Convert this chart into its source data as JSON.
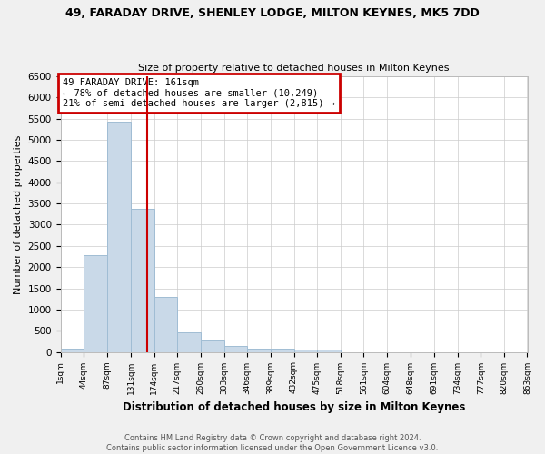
{
  "title_line1": "49, FARADAY DRIVE, SHENLEY LODGE, MILTON KEYNES, MK5 7DD",
  "title_line2": "Size of property relative to detached houses in Milton Keynes",
  "xlabel": "Distribution of detached houses by size in Milton Keynes",
  "ylabel": "Number of detached properties",
  "bin_edges": [
    1,
    44,
    87,
    131,
    174,
    217,
    260,
    303,
    346,
    389,
    432,
    475,
    518,
    561,
    604,
    648,
    691,
    734,
    777,
    820,
    863
  ],
  "bin_labels": [
    "1sqm",
    "44sqm",
    "87sqm",
    "131sqm",
    "174sqm",
    "217sqm",
    "260sqm",
    "303sqm",
    "346sqm",
    "389sqm",
    "432sqm",
    "475sqm",
    "518sqm",
    "561sqm",
    "604sqm",
    "648sqm",
    "691sqm",
    "734sqm",
    "777sqm",
    "820sqm",
    "863sqm"
  ],
  "bar_heights": [
    75,
    2280,
    5430,
    3380,
    1300,
    470,
    300,
    130,
    75,
    75,
    50,
    50,
    0,
    0,
    0,
    0,
    0,
    0,
    0,
    0
  ],
  "bar_color": "#c9d9e8",
  "bar_edge_color": "#a0bdd4",
  "vline_x": 161,
  "vline_color": "#cc0000",
  "annotation_title": "49 FARADAY DRIVE: 161sqm",
  "annotation_line2": "← 78% of detached houses are smaller (10,249)",
  "annotation_line3": "21% of semi-detached houses are larger (2,815) →",
  "annotation_box_color": "#cc0000",
  "ylim": [
    0,
    6500
  ],
  "yticks": [
    0,
    500,
    1000,
    1500,
    2000,
    2500,
    3000,
    3500,
    4000,
    4500,
    5000,
    5500,
    6000,
    6500
  ],
  "footer_line1": "Contains HM Land Registry data © Crown copyright and database right 2024.",
  "footer_line2": "Contains public sector information licensed under the Open Government Licence v3.0.",
  "bg_color": "#f0f0f0",
  "plot_bg_color": "#ffffff",
  "grid_color": "#cccccc"
}
